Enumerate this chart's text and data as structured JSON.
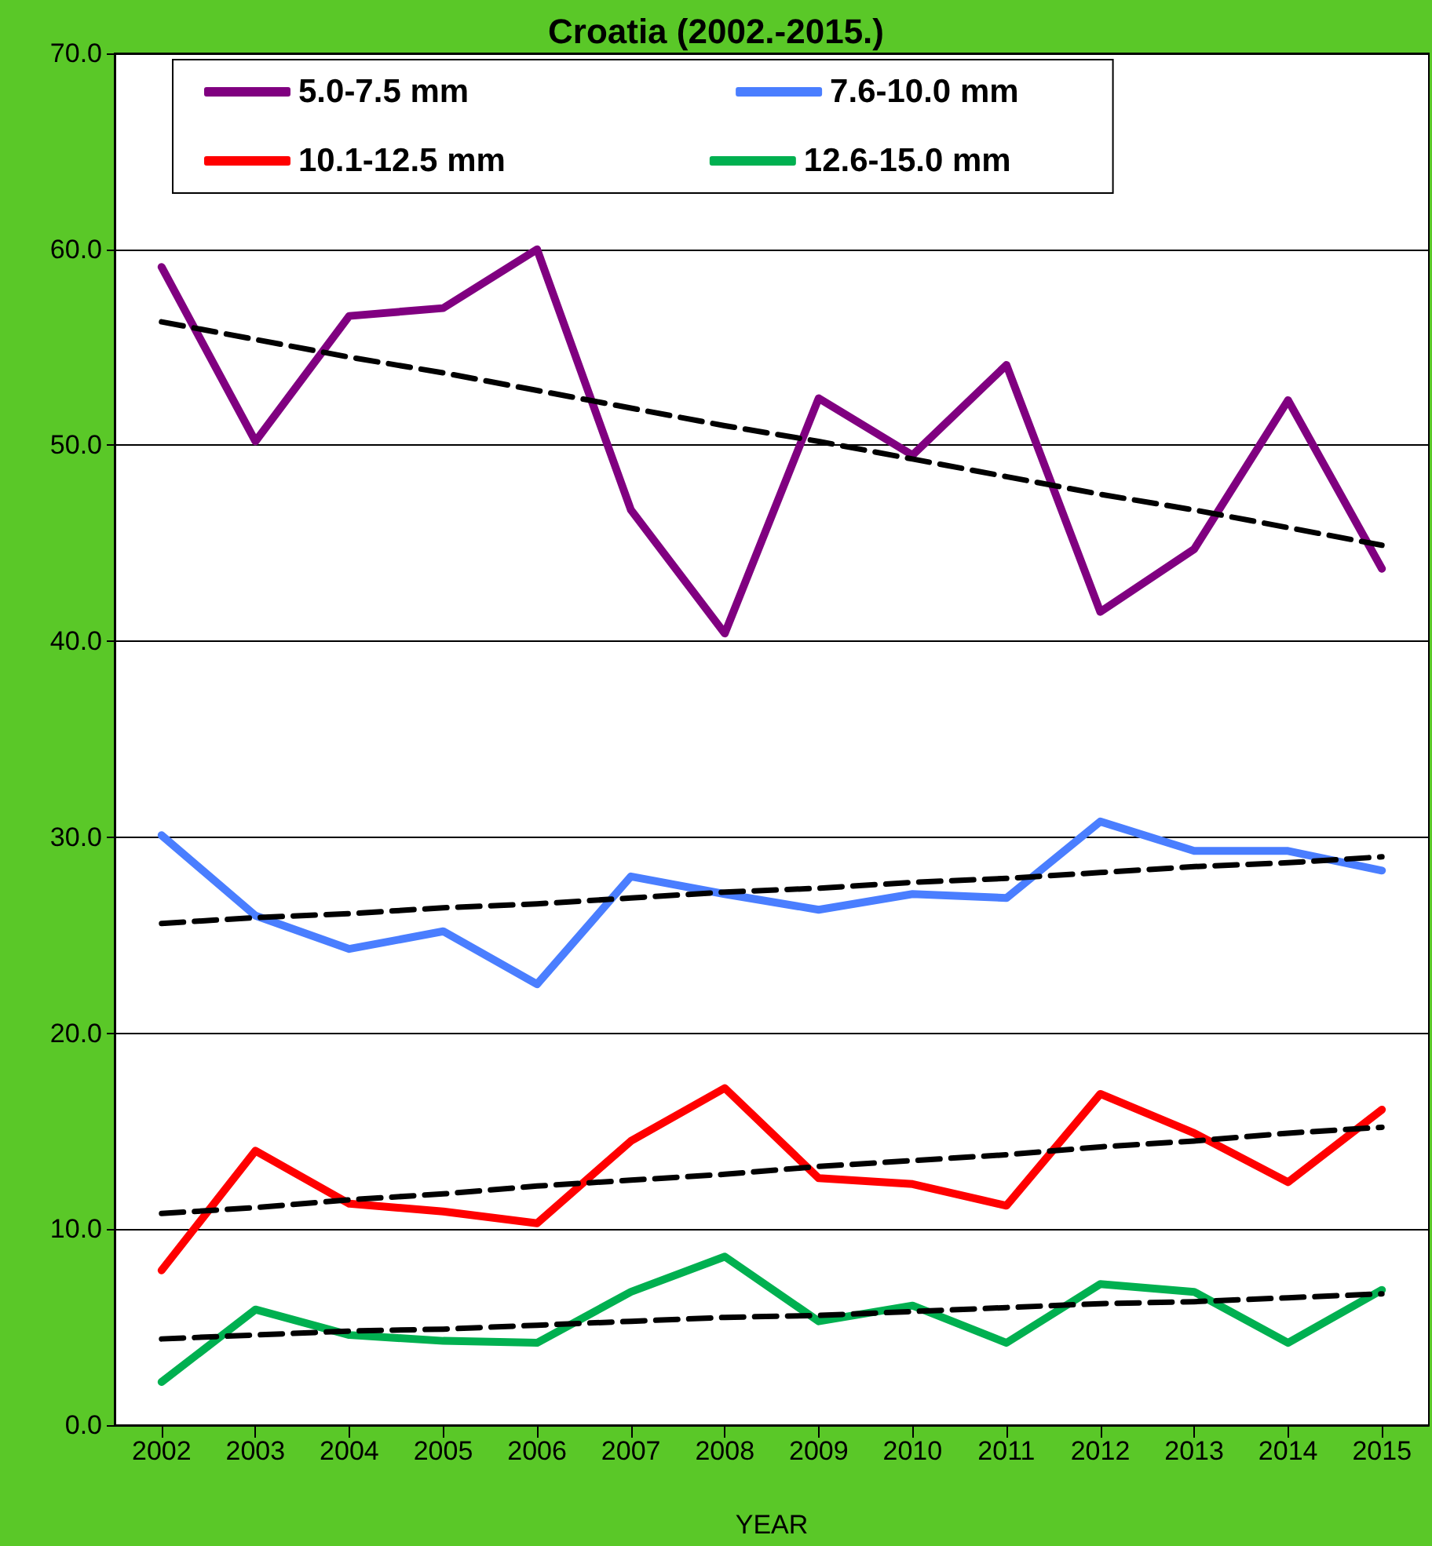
{
  "chart_data": {
    "type": "line",
    "title": "Croatia (2002.-2015.)",
    "xlabel": "YEAR",
    "categories": [
      "2002",
      "2003",
      "2004",
      "2005",
      "2006",
      "2007",
      "2008",
      "2009",
      "2010",
      "2011",
      "2012",
      "2013",
      "2014",
      "2015"
    ],
    "series": [
      {
        "name": "5.0-7.5 mm",
        "color": "#800080",
        "values": [
          59.1,
          50.2,
          56.6,
          57.0,
          60.0,
          46.7,
          40.4,
          52.4,
          49.5,
          54.1,
          41.5,
          44.7,
          52.3,
          43.7
        ]
      },
      {
        "name": "7.6-10.0 mm",
        "color": "#4a7eff",
        "values": [
          30.1,
          26.0,
          24.3,
          25.2,
          22.5,
          28.0,
          27.1,
          26.3,
          27.1,
          26.9,
          30.8,
          29.3,
          29.3,
          28.3
        ]
      },
      {
        "name": "10.1-12.5 mm",
        "color": "#ff0000",
        "values": [
          7.9,
          14.0,
          11.3,
          10.9,
          10.3,
          14.5,
          17.2,
          12.6,
          12.3,
          11.2,
          16.9,
          14.9,
          12.4,
          16.1
        ]
      },
      {
        "name": "12.6-15.0 mm",
        "color": "#00b050",
        "values": [
          2.2,
          5.9,
          4.6,
          4.3,
          4.2,
          6.8,
          8.6,
          5.3,
          6.1,
          4.2,
          7.2,
          6.8,
          4.2,
          6.9
        ]
      },
      {
        "type": "line",
        "color": "#000000",
        "line_style": "dashed",
        "values": [
          56.3,
          55.4,
          54.5,
          53.7,
          52.8,
          51.9,
          51.0,
          50.2,
          49.3,
          48.4,
          47.5,
          46.7,
          45.8,
          44.9
        ]
      },
      {
        "type": "line",
        "color": "#000000",
        "line_style": "dashed",
        "values": [
          25.6,
          25.9,
          26.1,
          26.4,
          26.6,
          26.9,
          27.2,
          27.4,
          27.7,
          27.9,
          28.2,
          28.5,
          28.7,
          29.0
        ]
      },
      {
        "type": "line",
        "color": "#000000",
        "line_style": "dashed",
        "values": [
          10.8,
          11.1,
          11.5,
          11.8,
          12.2,
          12.5,
          12.8,
          13.2,
          13.5,
          13.8,
          14.2,
          14.5,
          14.9,
          15.2
        ]
      },
      {
        "type": "line",
        "color": "#000000",
        "line_style": "dashed",
        "values": [
          4.4,
          4.6,
          4.8,
          4.9,
          5.1,
          5.3,
          5.5,
          5.6,
          5.8,
          6.0,
          6.2,
          6.3,
          6.5,
          6.7
        ]
      }
    ],
    "ylim": [
      0,
      70
    ],
    "yticks": [
      {
        "value": 0,
        "label": "0.0"
      },
      {
        "value": 10,
        "label": "10.0"
      },
      {
        "value": 20,
        "label": "20.0"
      },
      {
        "value": 30,
        "label": "30.0"
      },
      {
        "value": 40,
        "label": "40.0"
      },
      {
        "value": 50,
        "label": "50.0"
      },
      {
        "value": 60,
        "label": "60.0"
      },
      {
        "value": 70,
        "label": "70.0"
      }
    ],
    "grid": "y",
    "legend": "top",
    "marker": "none",
    "line_style": "solid"
  }
}
